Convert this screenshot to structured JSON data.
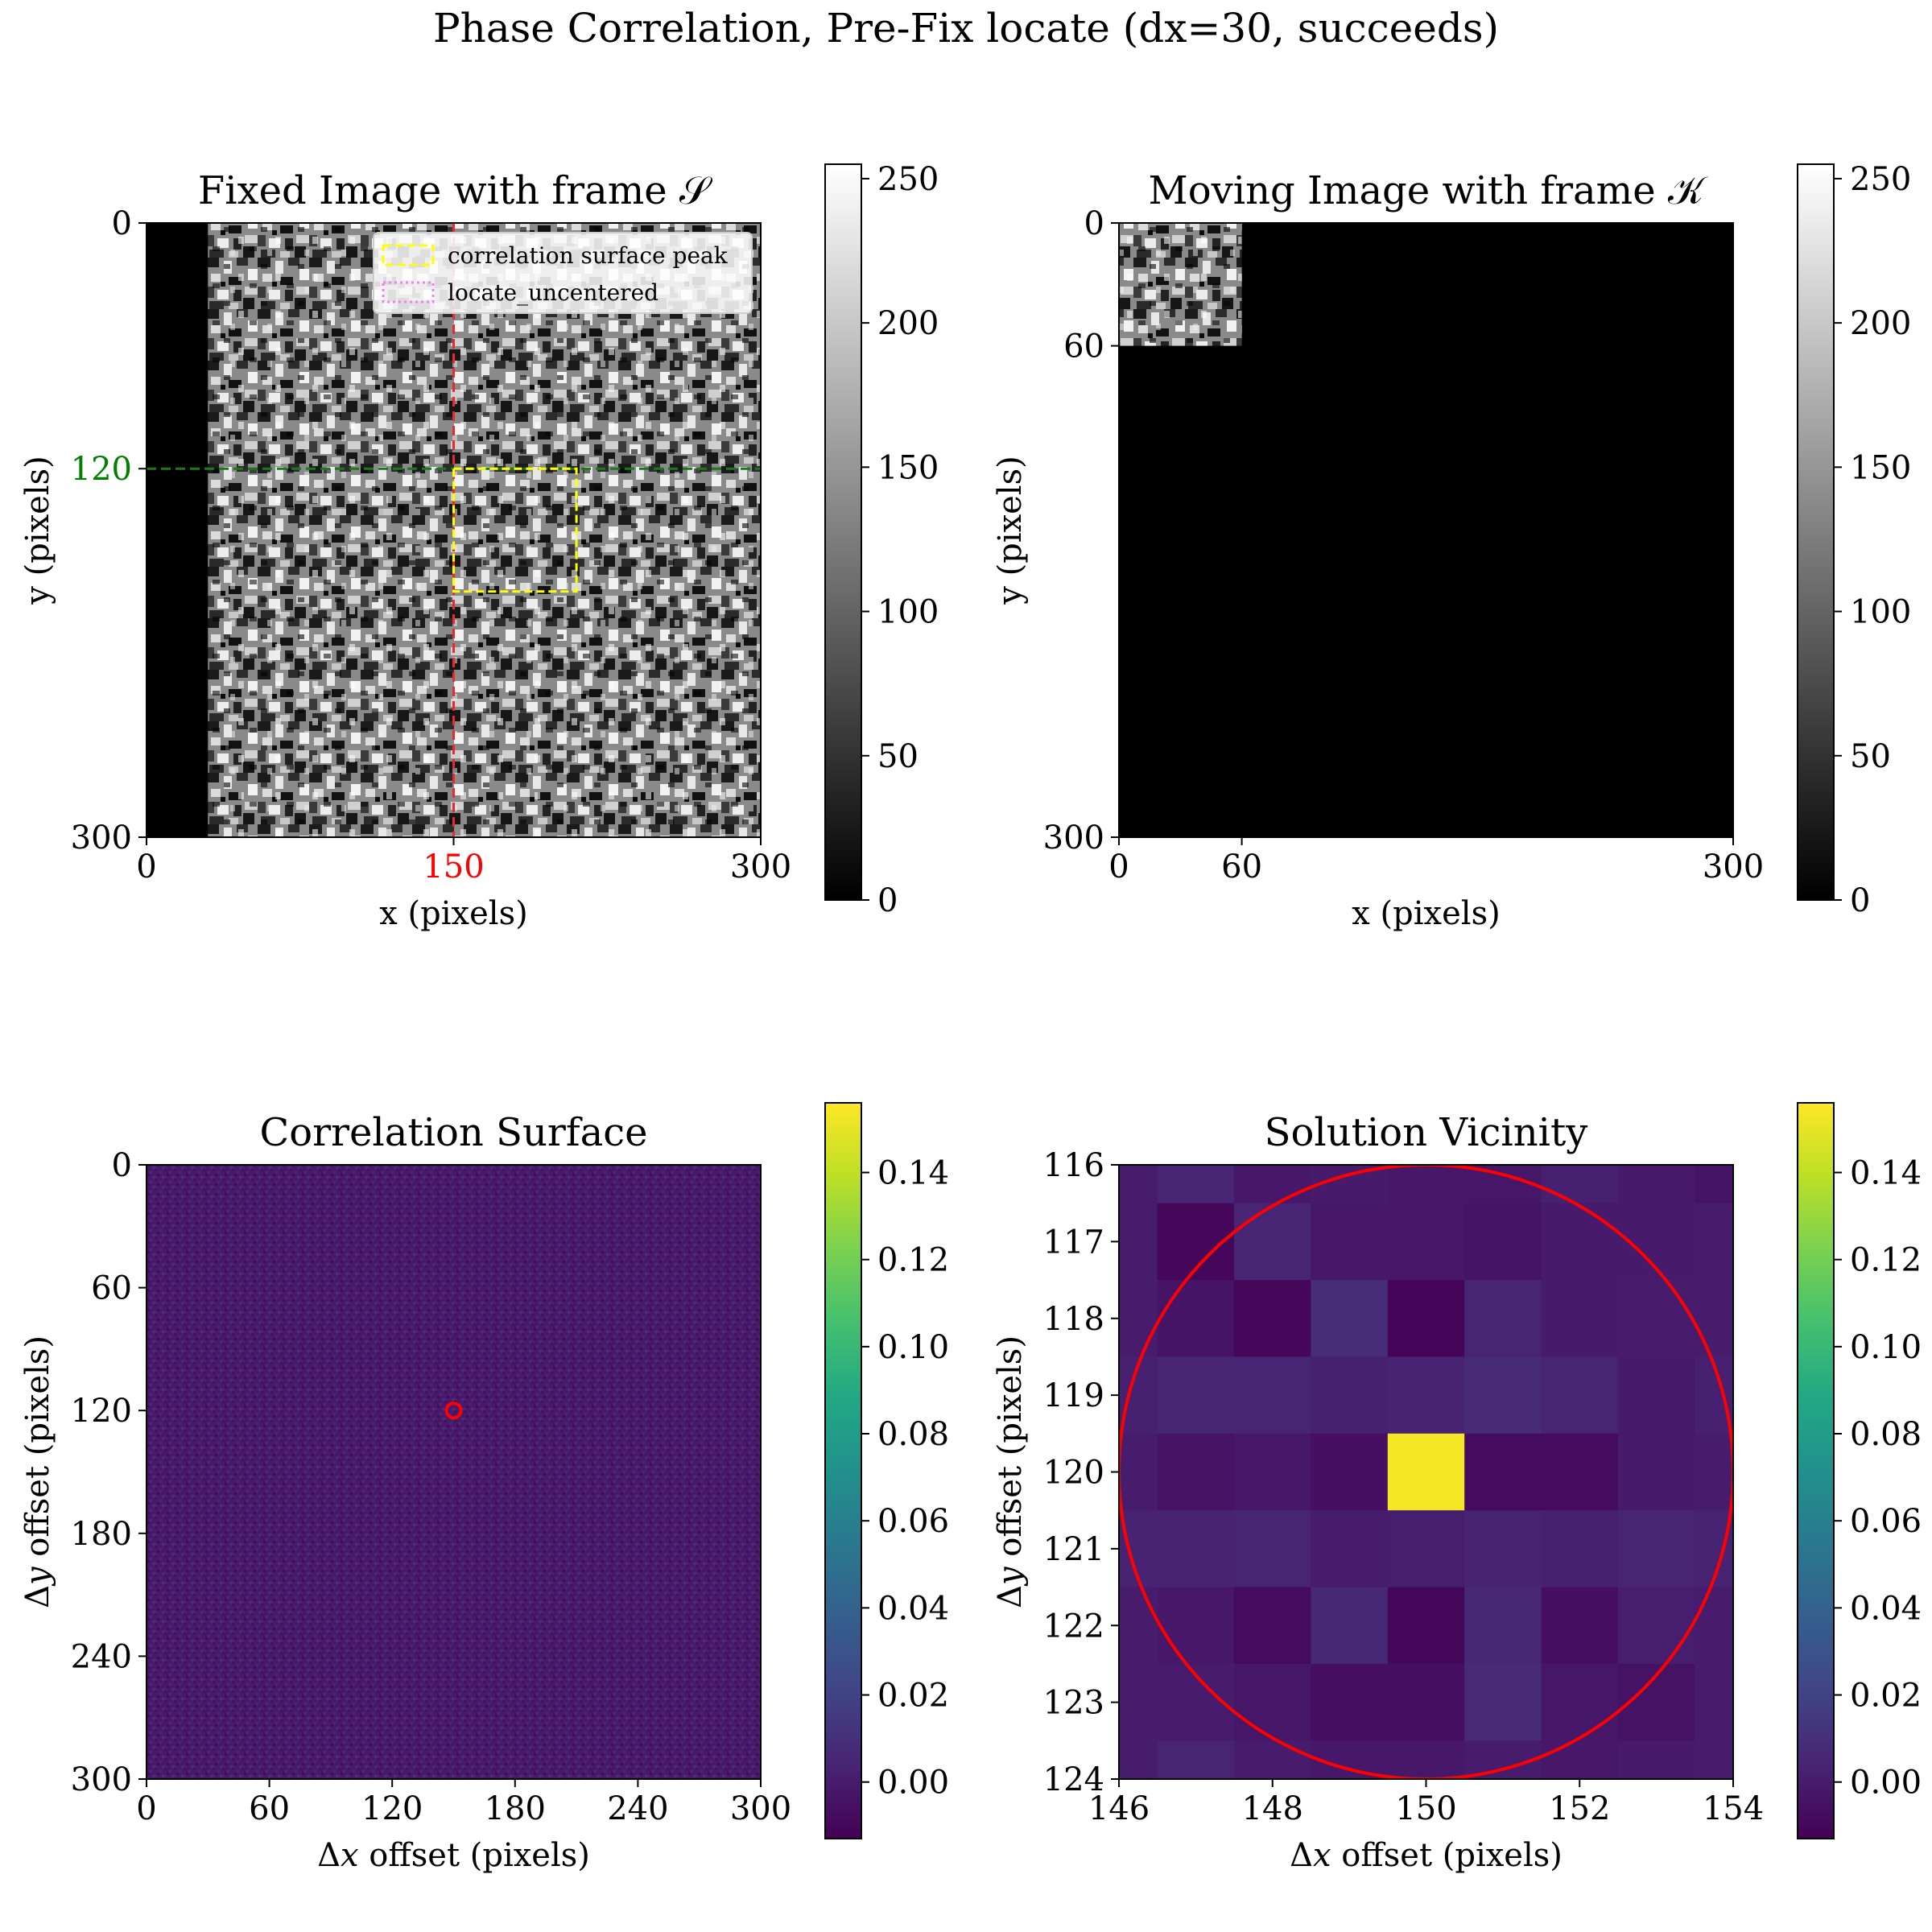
{
  "figure": {
    "suptitle": "Phase Correlation, Pre-Fix locate (dx=30, succeeds)"
  },
  "colors": {
    "marker_red": "#ff0000",
    "guide_red": "#e8292e",
    "guide_green": "#1a7a1a",
    "tick_red": "#ff0000",
    "tick_green": "#008000",
    "legend_yellow": "#ffff00",
    "legend_magenta": "#ee82ee",
    "viridis_low": "#440154",
    "viridis_high": "#fde725"
  },
  "chart_data": [
    {
      "id": "fixed",
      "type": "heatmap",
      "title": "Fixed Image with frame 𝒮",
      "xlabel": "x (pixels)",
      "ylabel": "y (pixels)",
      "xlim": [
        0,
        300
      ],
      "ylim": [
        300,
        0
      ],
      "xticks": [
        0,
        150,
        300
      ],
      "xtick_labels": [
        "0",
        "150",
        "300"
      ],
      "xtick_colors": [
        "#000000",
        "#ff0000",
        "#000000"
      ],
      "yticks": [
        0,
        120,
        300
      ],
      "ytick_labels": [
        "0",
        "120",
        "300"
      ],
      "ytick_colors": [
        "#000000",
        "#008000",
        "#000000"
      ],
      "colormap": "gray",
      "colorbar": {
        "range": [
          0,
          255
        ],
        "ticks": [
          0,
          50,
          100,
          150,
          200,
          250
        ],
        "tick_labels": [
          "0",
          "50",
          "100",
          "150",
          "200",
          "250"
        ]
      },
      "image": {
        "kind": "speckle",
        "black_band_x": [
          0,
          30
        ]
      },
      "vlines": [
        {
          "x": 150,
          "color": "red",
          "style": "dashed"
        }
      ],
      "hlines": [
        {
          "y": 120,
          "color": "green",
          "style": "dashed"
        }
      ],
      "rectangles": [
        {
          "x": 150,
          "y": 120,
          "w": 60,
          "h": 60,
          "color": "yellow",
          "style": "dashed",
          "series": "correlation surface peak"
        }
      ],
      "legend": {
        "placement": "upper-right",
        "entries": [
          {
            "label": "correlation surface peak",
            "color": "#ffff00",
            "style": "dashed"
          },
          {
            "label": "locate_uncentered",
            "color": "#ee82ee",
            "style": "dotted"
          }
        ]
      }
    },
    {
      "id": "moving",
      "type": "heatmap",
      "title": "Moving Image with frame 𝒦",
      "xlabel": "x (pixels)",
      "ylabel": "y (pixels)",
      "xlim": [
        0,
        300
      ],
      "ylim": [
        300,
        0
      ],
      "xticks": [
        0,
        60,
        300
      ],
      "xtick_labels": [
        "0",
        "60",
        "300"
      ],
      "yticks": [
        0,
        60,
        300
      ],
      "ytick_labels": [
        "0",
        "60",
        "300"
      ],
      "colormap": "gray",
      "colorbar": {
        "range": [
          0,
          255
        ],
        "ticks": [
          0,
          50,
          100,
          150,
          200,
          250
        ],
        "tick_labels": [
          "0",
          "50",
          "100",
          "150",
          "200",
          "250"
        ]
      },
      "image": {
        "kind": "patch",
        "patch": [
          0,
          0,
          60,
          60
        ]
      }
    },
    {
      "id": "surface",
      "type": "heatmap",
      "title": "Correlation Surface",
      "xlabel": "Δ𝑥 offset (pixels)",
      "ylabel": "Δ𝑦 offset (pixels)",
      "xlim": [
        0,
        300
      ],
      "ylim": [
        300,
        0
      ],
      "xticks": [
        0,
        60,
        120,
        180,
        240,
        300
      ],
      "xtick_labels": [
        "0",
        "60",
        "120",
        "180",
        "240",
        "300"
      ],
      "yticks": [
        0,
        60,
        120,
        180,
        240,
        300
      ],
      "ytick_labels": [
        "0",
        "60",
        "120",
        "180",
        "240",
        "300"
      ],
      "colormap": "viridis",
      "colorbar": {
        "range": [
          -0.013,
          0.156
        ],
        "ticks": [
          0.0,
          0.02,
          0.04,
          0.06,
          0.08,
          0.1,
          0.12,
          0.14
        ],
        "tick_labels": [
          "0.00",
          "0.02",
          "0.04",
          "0.06",
          "0.08",
          "0.10",
          "0.12",
          "0.14"
        ]
      },
      "image": {
        "kind": "noise"
      },
      "markers": [
        {
          "x": 150,
          "y": 120,
          "shape": "circle",
          "color": "red"
        }
      ]
    },
    {
      "id": "vicinity",
      "type": "heatmap",
      "title": "Solution Vicinity",
      "xlabel": "Δ𝑥 offset (pixels)",
      "ylabel": "Δ𝑦 offset (pixels)",
      "xlim": [
        146,
        154
      ],
      "ylim": [
        124,
        116
      ],
      "xticks": [
        146,
        148,
        150,
        152,
        154
      ],
      "xtick_labels": [
        "146",
        "148",
        "150",
        "152",
        "154"
      ],
      "yticks": [
        116,
        117,
        118,
        119,
        120,
        121,
        122,
        123,
        124
      ],
      "ytick_labels": [
        "116",
        "117",
        "118",
        "119",
        "120",
        "121",
        "122",
        "123",
        "124"
      ],
      "colormap": "viridis",
      "colorbar": {
        "range": [
          -0.013,
          0.156
        ],
        "ticks": [
          0.0,
          0.02,
          0.04,
          0.06,
          0.08,
          0.1,
          0.12,
          0.14
        ],
        "tick_labels": [
          "0.00",
          "0.02",
          "0.04",
          "0.06",
          "0.08",
          "0.10",
          "0.12",
          "0.14"
        ]
      },
      "grid": {
        "x_start": 145.5,
        "y_start": 115.5,
        "values": [
          [
            0.0,
            0.004,
            -0.002,
            -0.001,
            -0.002,
            -0.003,
            0.002,
            -0.001,
            -0.004
          ],
          [
            0.0,
            -0.01,
            0.004,
            -0.002,
            -0.002,
            -0.004,
            -0.001,
            -0.001,
            0.0
          ],
          [
            0.0,
            -0.004,
            -0.01,
            0.008,
            -0.011,
            0.004,
            -0.001,
            0.0,
            0.0
          ],
          [
            0.002,
            0.004,
            0.004,
            0.002,
            0.003,
            0.007,
            0.004,
            -0.001,
            0.002
          ],
          [
            0.0,
            -0.005,
            -0.002,
            -0.006,
            0.154,
            -0.008,
            -0.008,
            -0.001,
            0.0
          ],
          [
            0.003,
            0.003,
            0.004,
            0.0,
            0.001,
            0.003,
            0.002,
            0.004,
            0.003
          ],
          [
            0.0,
            -0.002,
            -0.008,
            0.006,
            -0.01,
            0.006,
            -0.006,
            0.001,
            0.0
          ],
          [
            0.0,
            0.0,
            -0.003,
            -0.006,
            -0.006,
            0.007,
            -0.003,
            -0.005,
            0.0
          ],
          [
            0.0,
            0.004,
            0.0,
            -0.002,
            -0.002,
            0.0,
            -0.002,
            -0.001,
            0.0
          ]
        ]
      },
      "markers": [
        {
          "x": 150,
          "y": 120,
          "shape": "circle",
          "radius": 4,
          "color": "red"
        }
      ]
    }
  ]
}
